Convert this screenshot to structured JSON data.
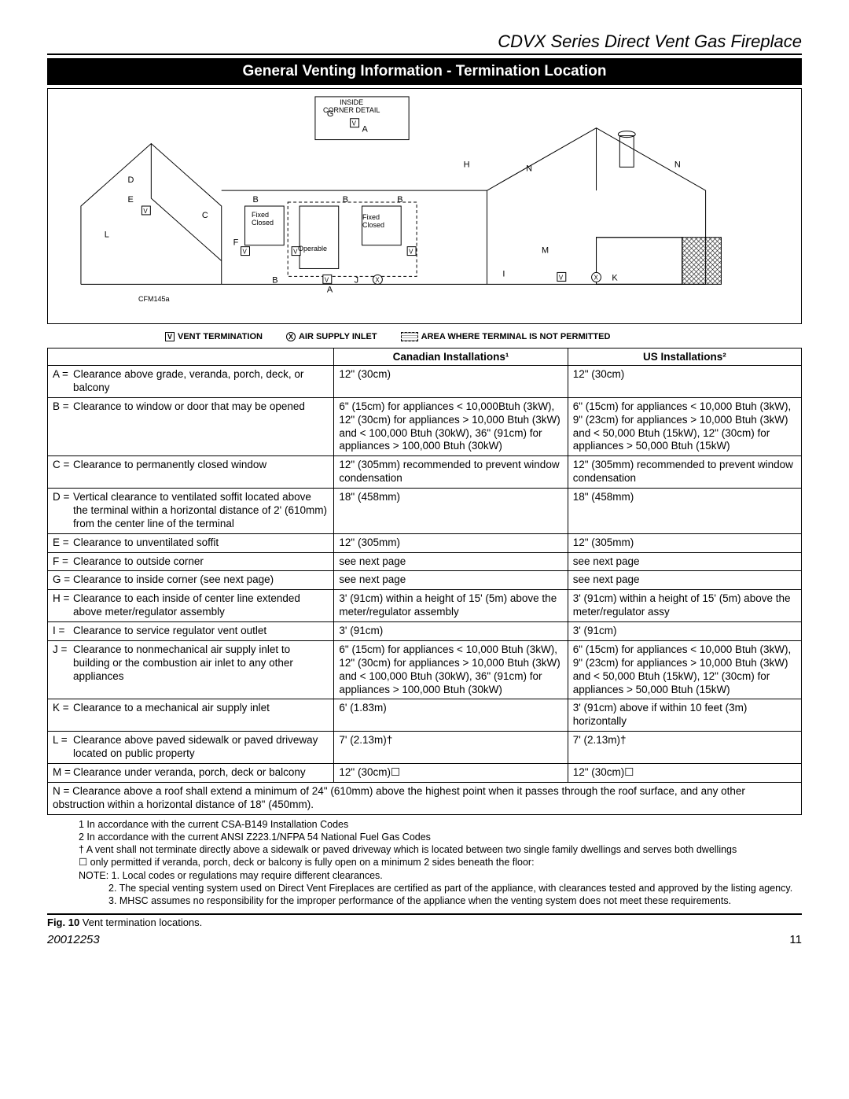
{
  "header": {
    "title": "CDVX Series Direct Vent Gas Fireplace"
  },
  "section": {
    "title": "General Venting Information - Termination Location"
  },
  "diagram": {
    "inside_corner": "INSIDE\nCORNER DETAIL",
    "fixed_closed": "Fixed\nClosed",
    "operable": "Operable",
    "operable_closed": "Fixed\nClosed",
    "cfm": "CFM145a"
  },
  "legend": {
    "vent": "VENT TERMINATION",
    "air": "AIR SUPPLY INLET",
    "area": "AREA WHERE TERMINAL IS NOT PERMITTED"
  },
  "table": {
    "head_desc": "",
    "head_can": "Canadian Installations¹",
    "head_us": "US Installations²",
    "rows": [
      {
        "k": "A =",
        "d": "Clearance above grade, veranda, porch, deck, or balcony",
        "c": "12\" (30cm)",
        "u": "12\" (30cm)"
      },
      {
        "k": "B =",
        "d": "Clearance to window or door that may be opened",
        "c": "6\" (15cm) for appliances < 10,000Btuh (3kW), 12\" (30cm) for appliances > 10,000 Btuh (3kW) and < 100,000 Btuh (30kW), 36\" (91cm) for appliances > 100,000 Btuh (30kW)",
        "u": "6\" (15cm) for appliances < 10,000 Btuh (3kW), 9\" (23cm) for appliances > 10,000 Btuh (3kW) and < 50,000 Btuh (15kW), 12\" (30cm) for appliances > 50,000 Btuh (15kW)"
      },
      {
        "k": "C =",
        "d": "Clearance to permanently closed window",
        "c": "12\" (305mm) recommended to prevent window condensation",
        "u": "12\" (305mm) recommended to prevent window condensation"
      },
      {
        "k": "D =",
        "d": "Vertical clearance to ventilated soffit located above the terminal within a horizontal distance of 2' (610mm) from the center line of the terminal",
        "c": "18\" (458mm)",
        "u": "18\" (458mm)"
      },
      {
        "k": "E =",
        "d": "Clearance to unventilated soffit",
        "c": "12\" (305mm)",
        "u": "12\" (305mm)"
      },
      {
        "k": "F =",
        "d": "Clearance to outside corner",
        "c": "see next page",
        "u": "see next page"
      },
      {
        "k": "G =",
        "d": "Clearance to inside corner (see next page)",
        "c": "see next page",
        "u": "see next page"
      },
      {
        "k": "H =",
        "d": "Clearance to each inside of center line extended above meter/regulator assembly",
        "c": "3' (91cm) within a height of 15' (5m) above the meter/regulator assembly",
        "u": "3' (91cm) within a height of 15' (5m) above the meter/regulator assy"
      },
      {
        "k": "I =",
        "d": "Clearance to service regulator vent outlet",
        "c": "3' (91cm)",
        "u": "3' (91cm)"
      },
      {
        "k": "J =",
        "d": "Clearance to nonmechanical air supply inlet to building or the combustion air inlet to any other appliances",
        "c": "6\" (15cm) for appliances < 10,000 Btuh (3kW), 12\" (30cm) for appliances > 10,000 Btuh (3kW) and < 100,000 Btuh (30kW), 36\" (91cm) for appliances > 100,000 Btuh (30kW)",
        "u": "6\" (15cm) for appliances < 10,000 Btuh (3kW), 9\" (23cm) for appliances > 10,000 Btuh (3kW) and < 50,000 Btuh (15kW), 12\" (30cm) for appliances > 50,000 Btuh (15kW)"
      },
      {
        "k": "K =",
        "d": "Clearance to a mechanical air supply inlet",
        "c": "6' (1.83m)",
        "u": "3' (91cm) above if within 10 feet (3m) horizontally"
      },
      {
        "k": "L =",
        "d": "Clearance  above paved sidewalk or paved driveway located on public property",
        "c": "7' (2.13m)†",
        "u": "7' (2.13m)†"
      },
      {
        "k": "M =",
        "d": "Clearance under veranda, porch, deck or balcony",
        "c": "12\" (30cm)☐",
        "u": "12\" (30cm)☐"
      }
    ],
    "full": "N =  Clearance above a roof shall extend a minimum of 24\" (610mm) above the highest point when it passes through the roof surface, and any other obstruction within a horizontal distance of 18\" (450mm)."
  },
  "footnotes": {
    "f1": "1 In accordance with the current CSA-B149 Installation Codes",
    "f2": "2 In accordance with the current ANSI Z223.1/NFPA 54 National Fuel Gas Codes",
    "f3": "† A vent shall not terminate directly above a sidewalk or paved driveway which is located between two single family dwellings and serves both dwellings",
    "f4": "☐ only permitted if veranda, porch, deck or balcony is fully open on a minimum 2 sides beneath the floor:",
    "n1": "NOTE:  1. Local codes or regulations may require different clearances.",
    "n2": "2. The special venting system used on Direct Vent Fireplaces are certified as part of the appliance, with clearances tested and approved by the listing agency.",
    "n3": "3. MHSC assumes no responsibility for the improper performance of the appliance when the venting system does not meet these requirements."
  },
  "caption": {
    "label": "Fig. 10",
    "text": "  Vent termination locations."
  },
  "footer": {
    "doc": "20012253",
    "page": "11"
  }
}
